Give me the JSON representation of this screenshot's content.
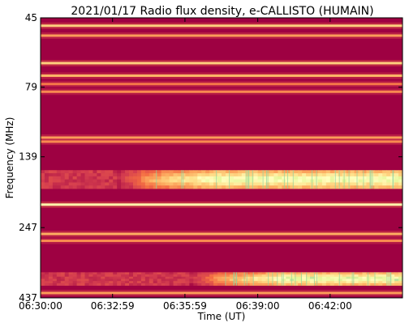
{
  "chart_data": {
    "type": "heatmap",
    "title": "2021/01/17  Radio flux density, e-CALLISTO (HUMAIN)",
    "xlabel": "Time (UT)",
    "ylabel": "Frequency (MHz)",
    "x_ticks": [
      "06:30:00",
      "06:32:59",
      "06:35:59",
      "06:39:00",
      "06:42:00"
    ],
    "y_ticks": [
      "45",
      "79",
      "139",
      "247",
      "437"
    ],
    "x_range": [
      "06:30:00",
      "06:45:00"
    ],
    "y_range_mhz": [
      45,
      437
    ],
    "colormap": "Spectral",
    "colors": {
      "background": "#9e0142",
      "low": "#9e0142",
      "mid": "#f46d43",
      "high": "#fee08b",
      "peak": "#e6f598",
      "max": "#3288bd"
    },
    "features": [
      {
        "kind": "persistent-band",
        "freq_mhz": 48,
        "intensity": 0.7
      },
      {
        "kind": "persistent-band",
        "freq_mhz": 52,
        "intensity": 0.55
      },
      {
        "kind": "persistent-band",
        "freq_mhz": 65,
        "intensity": 0.7
      },
      {
        "kind": "persistent-band",
        "freq_mhz": 72,
        "intensity": 0.62
      },
      {
        "kind": "persistent-band",
        "freq_mhz": 77,
        "intensity": 0.45
      },
      {
        "kind": "persistent-band",
        "freq_mhz": 82,
        "intensity": 0.5
      },
      {
        "kind": "persistent-band",
        "freq_mhz": 119,
        "intensity": 0.55
      },
      {
        "kind": "persistent-band",
        "freq_mhz": 123,
        "intensity": 0.5
      },
      {
        "kind": "persistent-band",
        "freq_mhz": 205,
        "intensity": 0.82
      },
      {
        "kind": "persistent-band",
        "freq_mhz": 260,
        "intensity": 0.6
      },
      {
        "kind": "persistent-band",
        "freq_mhz": 275,
        "intensity": 0.5
      },
      {
        "kind": "persistent-band",
        "freq_mhz": 420,
        "intensity": 0.55
      },
      {
        "kind": "emission-band",
        "freq_range_mhz": [
          155,
          180
        ],
        "start": "06:34:30",
        "peak_intensity": 0.95
      },
      {
        "kind": "emission-band",
        "freq_range_mhz": [
          355,
          395
        ],
        "start": "06:37:30",
        "peak_intensity": 0.97
      }
    ]
  }
}
